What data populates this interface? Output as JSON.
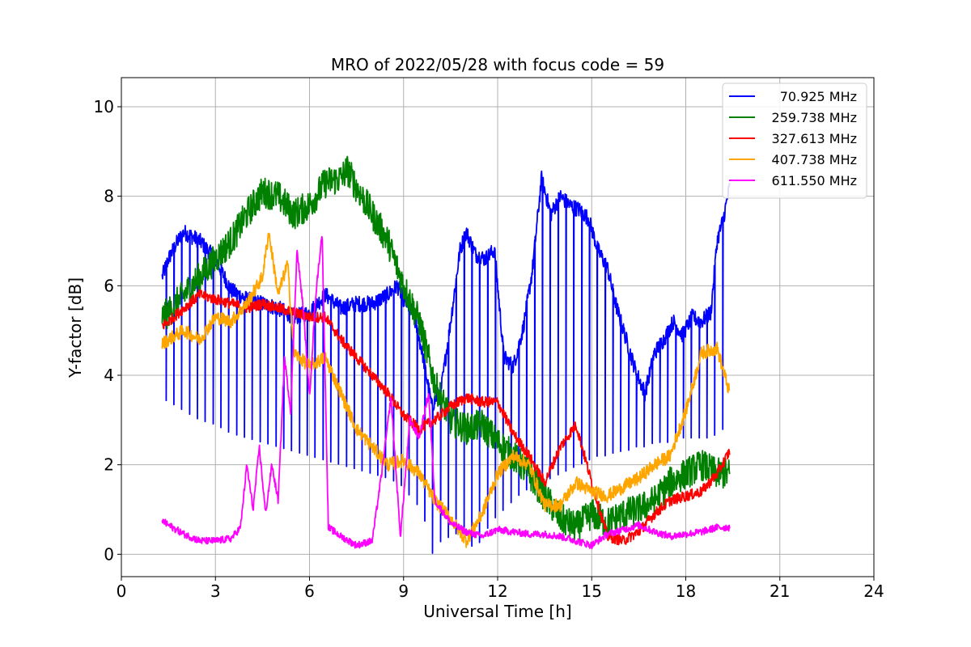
{
  "chart_data": {
    "type": "line",
    "title": "MRO of 2022/05/28 with focus code = 59",
    "xlabel": "Universal Time [h]",
    "ylabel": "Y-factor [dB]",
    "xlim": [
      0,
      24
    ],
    "ylim": [
      -0.5,
      10.65
    ],
    "xticks": [
      0,
      3,
      6,
      9,
      12,
      15,
      18,
      21,
      24
    ],
    "yticks": [
      0,
      2,
      4,
      6,
      8,
      10
    ],
    "grid": true,
    "legend_position": "top-right",
    "series": [
      {
        "name": "70.925 MHz",
        "color": "#0000ff",
        "x": [
          1.3,
          1.5,
          1.8,
          2.0,
          2.5,
          3.0,
          3.5,
          4.0,
          4.5,
          5.0,
          5.5,
          6.0,
          6.5,
          7.0,
          7.5,
          8.0,
          8.5,
          8.8,
          9.0,
          9.3,
          9.6,
          9.9,
          10.2,
          10.5,
          10.8,
          11.0,
          11.3,
          11.6,
          11.9,
          12.2,
          12.5,
          12.8,
          13.1,
          13.4,
          13.7,
          14.0,
          14.3,
          14.6,
          14.9,
          15.2,
          15.5,
          15.8,
          16.1,
          16.4,
          16.7,
          17.0,
          17.3,
          17.6,
          17.9,
          18.2,
          18.5,
          18.8,
          19.0,
          19.2,
          19.4
        ],
        "y": [
          6.2,
          6.6,
          7.0,
          7.2,
          7.0,
          6.6,
          5.9,
          5.7,
          5.6,
          5.5,
          5.3,
          5.4,
          5.8,
          5.5,
          5.6,
          5.6,
          5.8,
          6.0,
          5.7,
          5.4,
          4.5,
          3.3,
          3.7,
          5.2,
          6.8,
          7.2,
          6.7,
          6.6,
          6.8,
          4.4,
          4.2,
          5.0,
          6.3,
          8.4,
          7.6,
          8.0,
          7.8,
          7.7,
          7.5,
          6.8,
          6.4,
          5.5,
          4.8,
          4.1,
          3.6,
          4.5,
          4.8,
          5.2,
          4.9,
          5.3,
          5.2,
          5.4,
          7.0,
          7.5,
          8.2
        ],
        "dip_min": [
          3.5,
          3.4,
          3.3,
          3.2,
          3.0,
          2.9,
          2.7,
          2.6,
          2.5,
          2.4,
          2.3,
          2.2,
          2.1,
          2.0,
          1.9,
          1.8,
          1.7,
          1.6,
          1.5,
          1.2,
          1.0,
          0.0,
          0.3,
          0.4,
          0.5,
          0.3,
          0.1,
          0.5,
          0.8,
          1.0,
          1.2,
          1.4,
          1.5,
          1.6,
          1.7,
          1.8,
          1.9,
          2.0,
          2.1,
          2.2,
          2.2,
          2.3,
          2.3,
          2.4,
          2.4,
          2.5,
          2.5,
          2.5,
          2.6,
          2.6,
          2.6,
          2.6,
          2.7,
          2.8,
          2.8
        ],
        "dip_spacing_h": 0.25
      },
      {
        "name": "259.738 MHz",
        "color": "#008000",
        "x": [
          1.3,
          1.5,
          2.0,
          2.5,
          3.0,
          3.5,
          4.0,
          4.5,
          5.0,
          5.5,
          6.0,
          6.5,
          7.0,
          7.2,
          7.5,
          8.0,
          8.5,
          9.0,
          9.5,
          10.0,
          10.5,
          11.0,
          11.5,
          12.0,
          12.5,
          13.0,
          13.5,
          14.0,
          14.5,
          15.0,
          15.5,
          16.0,
          16.5,
          17.0,
          17.5,
          18.0,
          18.5,
          19.0,
          19.4
        ],
        "y": [
          5.3,
          5.4,
          5.8,
          6.2,
          6.6,
          7.0,
          7.6,
          8.1,
          8.0,
          7.6,
          7.8,
          8.3,
          8.4,
          8.6,
          8.2,
          7.6,
          7.0,
          6.0,
          5.2,
          3.8,
          3.0,
          2.8,
          2.9,
          2.5,
          2.2,
          1.8,
          1.3,
          0.8,
          0.6,
          0.9,
          0.7,
          0.9,
          1.0,
          1.2,
          1.6,
          1.8,
          2.0,
          1.8,
          1.8
        ]
      },
      {
        "name": "327.613 MHz",
        "color": "#ff0000",
        "x": [
          1.3,
          1.5,
          2.0,
          2.5,
          3.0,
          3.5,
          4.0,
          4.5,
          5.0,
          5.5,
          6.0,
          6.5,
          7.0,
          7.5,
          8.0,
          8.5,
          9.0,
          9.5,
          10.0,
          10.5,
          11.0,
          11.5,
          12.0,
          12.5,
          13.0,
          13.5,
          14.0,
          14.5,
          15.0,
          15.5,
          16.0,
          16.5,
          17.0,
          17.5,
          18.0,
          18.5,
          19.0,
          19.4
        ],
        "y": [
          5.1,
          5.2,
          5.5,
          5.8,
          5.7,
          5.6,
          5.5,
          5.6,
          5.5,
          5.4,
          5.3,
          5.3,
          4.8,
          4.4,
          4.0,
          3.6,
          3.1,
          2.8,
          3.0,
          3.3,
          3.5,
          3.4,
          3.4,
          2.7,
          2.2,
          1.6,
          2.4,
          2.9,
          1.6,
          0.4,
          0.3,
          0.5,
          0.9,
          1.2,
          1.3,
          1.4,
          1.8,
          2.3
        ]
      },
      {
        "name": "407.738 MHz",
        "color": "#ffa500",
        "x": [
          1.3,
          1.5,
          2.0,
          2.5,
          3.0,
          3.5,
          4.0,
          4.5,
          4.7,
          5.0,
          5.3,
          5.5,
          6.0,
          6.5,
          7.0,
          7.5,
          8.0,
          8.5,
          9.0,
          9.5,
          10.0,
          10.5,
          11.0,
          11.5,
          12.0,
          12.5,
          13.0,
          13.5,
          14.0,
          14.5,
          15.0,
          15.5,
          16.0,
          16.5,
          17.0,
          17.5,
          18.0,
          18.5,
          19.0,
          19.4
        ],
        "y": [
          4.7,
          4.8,
          5.0,
          4.8,
          5.3,
          5.2,
          5.6,
          6.2,
          7.2,
          5.8,
          6.5,
          4.5,
          4.2,
          4.4,
          3.6,
          2.8,
          2.4,
          2.0,
          2.1,
          1.8,
          1.2,
          0.8,
          0.3,
          0.9,
          1.8,
          2.2,
          2.0,
          1.1,
          1.1,
          1.6,
          1.4,
          1.3,
          1.5,
          1.7,
          2.0,
          2.2,
          3.2,
          4.5,
          4.6,
          3.6
        ]
      },
      {
        "name": "611.550 MHz",
        "color": "#ff00ff",
        "x": [
          1.3,
          1.5,
          2.0,
          2.5,
          3.0,
          3.5,
          3.8,
          4.0,
          4.2,
          4.4,
          4.6,
          4.8,
          5.0,
          5.2,
          5.4,
          5.6,
          5.8,
          6.0,
          6.2,
          6.4,
          6.6,
          7.0,
          7.5,
          8.0,
          8.3,
          8.6,
          8.9,
          9.2,
          9.5,
          9.8,
          10.0,
          10.5,
          11.0,
          11.5,
          12.0,
          12.5,
          13.0,
          13.5,
          14.0,
          14.5,
          15.0,
          15.5,
          16.0,
          16.5,
          17.0,
          17.5,
          18.0,
          18.5,
          19.0,
          19.4
        ],
        "y": [
          0.75,
          0.65,
          0.45,
          0.3,
          0.3,
          0.35,
          0.6,
          2.0,
          1.0,
          2.4,
          0.9,
          2.0,
          1.2,
          4.4,
          3.2,
          6.8,
          5.5,
          3.5,
          5.8,
          7.2,
          0.6,
          0.4,
          0.2,
          0.3,
          1.8,
          3.5,
          0.4,
          3.0,
          2.6,
          3.6,
          1.2,
          0.7,
          0.5,
          0.4,
          0.55,
          0.5,
          0.45,
          0.45,
          0.4,
          0.3,
          0.2,
          0.45,
          0.55,
          0.65,
          0.5,
          0.4,
          0.45,
          0.5,
          0.6,
          0.6
        ]
      }
    ]
  }
}
